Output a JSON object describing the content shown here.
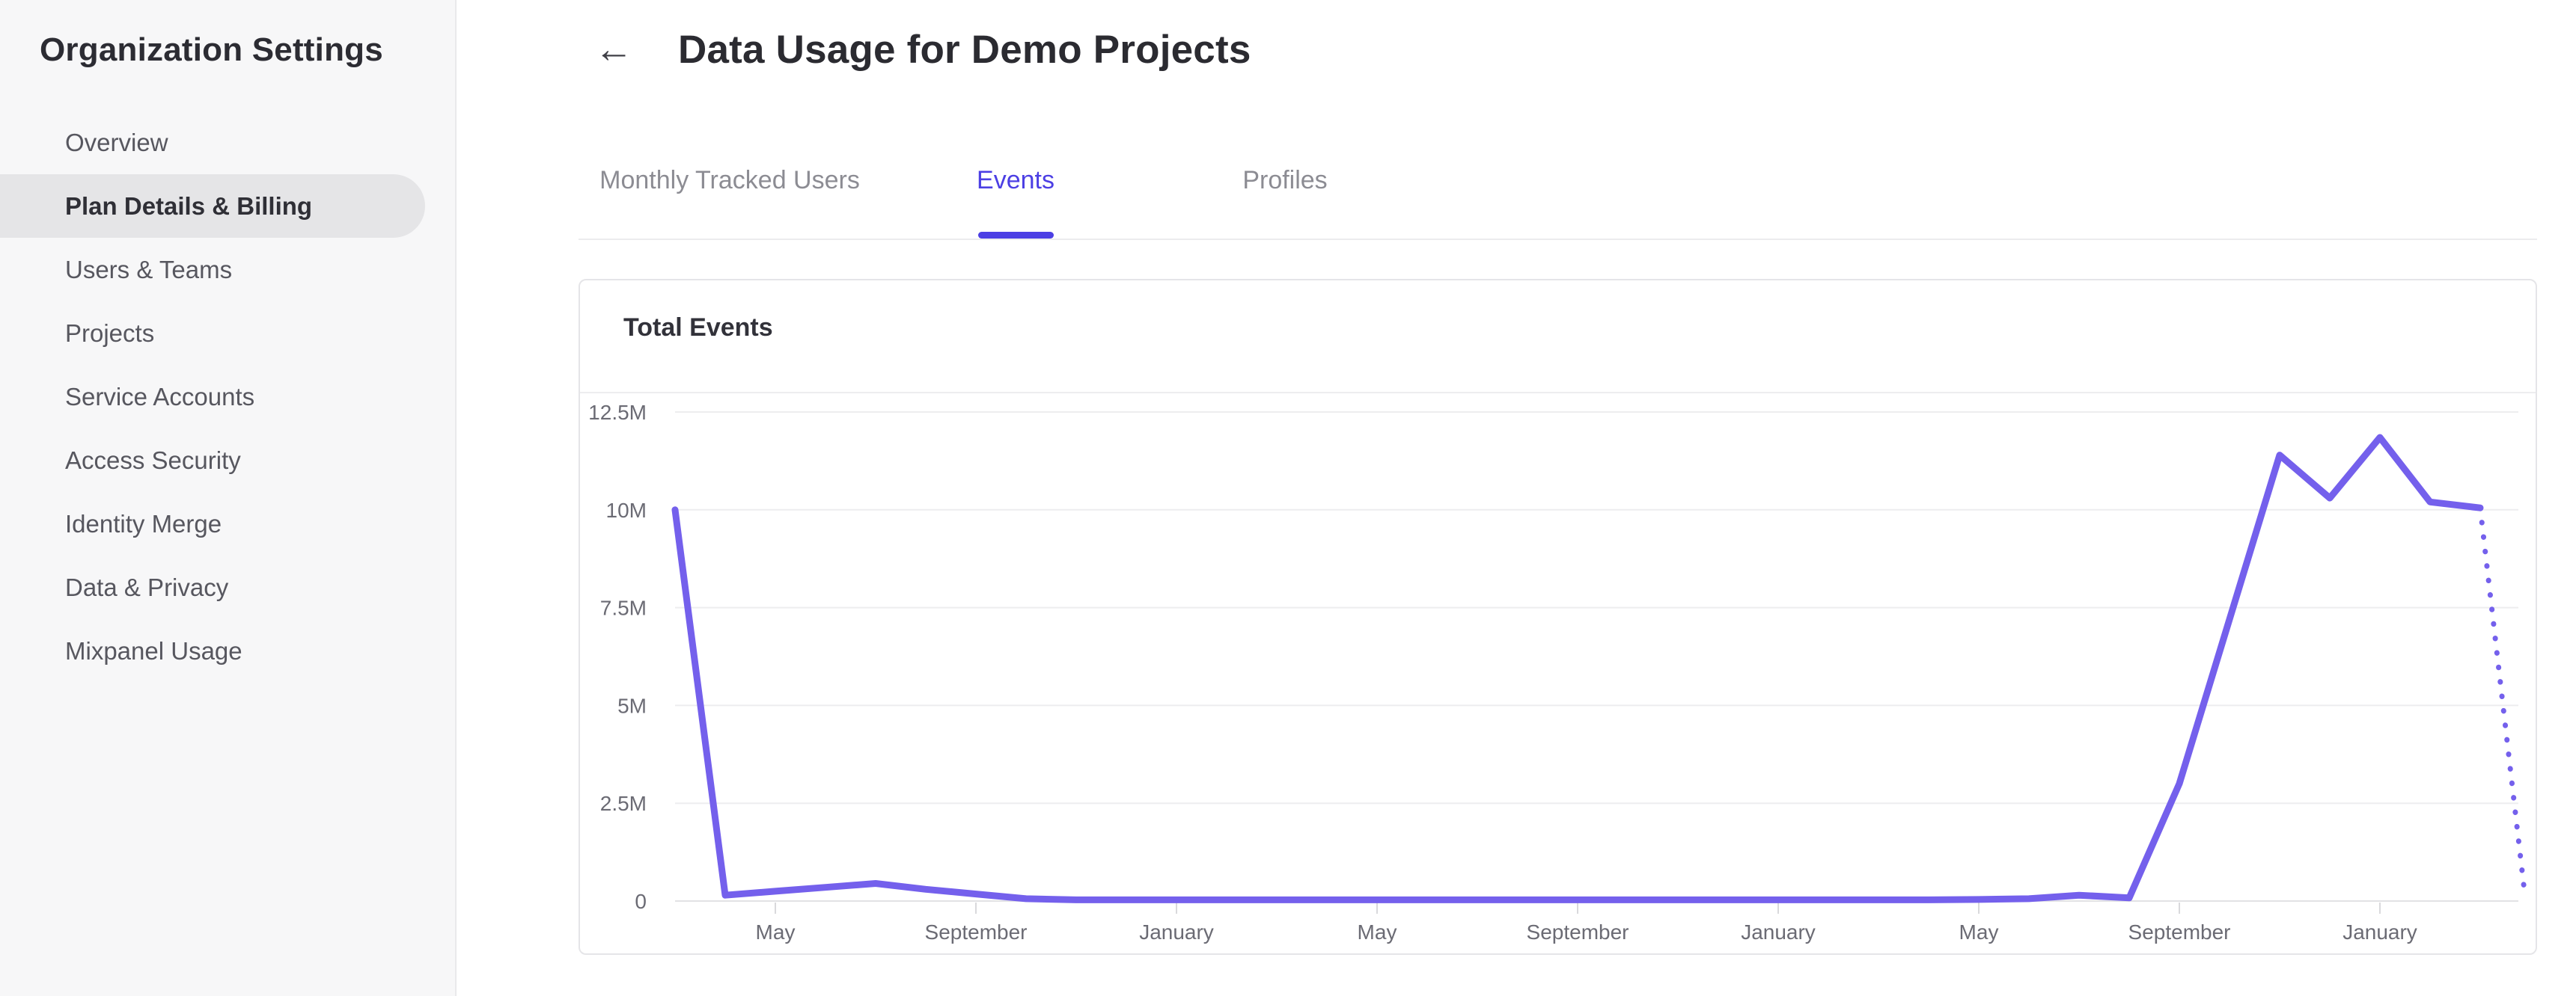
{
  "colors": {
    "accent": "#4c3fe4",
    "chart_line": "#7460ec",
    "sidebar_bg": "#f7f7f8",
    "selected_item_bg": "#e5e5e7"
  },
  "sidebar": {
    "title": "Organization Settings",
    "items": [
      {
        "label": "Overview",
        "selected": false
      },
      {
        "label": "Plan Details & Billing",
        "selected": true
      },
      {
        "label": "Users & Teams",
        "selected": false
      },
      {
        "label": "Projects",
        "selected": false
      },
      {
        "label": "Service Accounts",
        "selected": false
      },
      {
        "label": "Access Security",
        "selected": false
      },
      {
        "label": "Identity Merge",
        "selected": false
      },
      {
        "label": "Data & Privacy",
        "selected": false
      },
      {
        "label": "Mixpanel Usage",
        "selected": false
      }
    ]
  },
  "header": {
    "back_icon": "←",
    "title": "Data Usage for Demo Projects"
  },
  "tabs": [
    {
      "label": "Monthly Tracked Users",
      "active": false
    },
    {
      "label": "Events",
      "active": true
    },
    {
      "label": "Profiles",
      "active": false
    }
  ],
  "card": {
    "title": "Total Events"
  },
  "chart_data": {
    "type": "line",
    "title": "Total Events",
    "unit": "events per month (millions)",
    "series_name": "Total Events",
    "values_millions": [
      10,
      0.15,
      0.25,
      0.35,
      0.45,
      0.3,
      0.18,
      0.06,
      0.03,
      0.03,
      0.03,
      0.03,
      0.03,
      0.03,
      0.03,
      0.03,
      0.03,
      0.03,
      0.03,
      0.03,
      0.03,
      0.03,
      0.03,
      0.03,
      0.03,
      0.03,
      0.04,
      0.06,
      0.15,
      0.08,
      3.0,
      7.2,
      11.4,
      10.3,
      11.85,
      10.2,
      10.05,
      0.1
    ],
    "x_tick_labels": [
      "May",
      "September",
      "January",
      "May",
      "September",
      "January",
      "May",
      "September",
      "January"
    ],
    "x_tick_indices": [
      2,
      6,
      10,
      14,
      18,
      22,
      26,
      30,
      34
    ],
    "y_tick_labels": [
      "12.5M",
      "10M",
      "7.5M",
      "5M",
      "2.5M",
      "0"
    ],
    "y_tick_values": [
      12.5,
      10,
      7.5,
      5,
      2.5,
      0
    ],
    "ylim": [
      0,
      12.5
    ],
    "grid": "horizontal",
    "legend": "none",
    "last_segment_dotted": true,
    "line_color": "#7460ec"
  }
}
